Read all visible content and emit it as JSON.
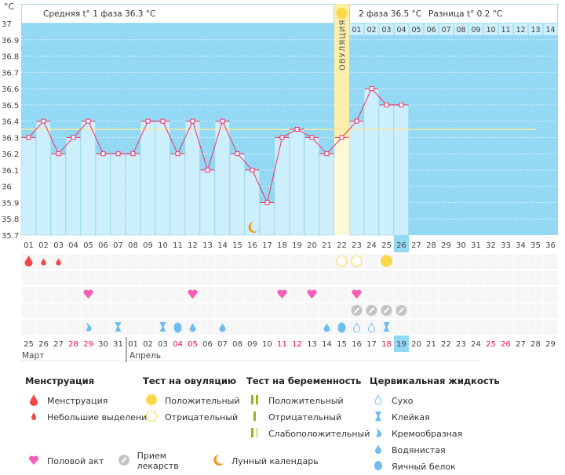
{
  "chart_data": {
    "type": "bar+line",
    "unit_label": "°C",
    "ylim": [
      35.7,
      37.0
    ],
    "y_ticks": [
      "37",
      "36.9",
      "36.8",
      "36.7",
      "36.6",
      "36.5",
      "36.4",
      "36.3",
      "36.2",
      "36.1",
      "36",
      "35.9",
      "35.8",
      "35.7"
    ],
    "cycle_days": [
      "01",
      "02",
      "03",
      "04",
      "05",
      "06",
      "07",
      "08",
      "09",
      "10",
      "11",
      "12",
      "13",
      "14",
      "15",
      "16",
      "17",
      "18",
      "19",
      "20",
      "21",
      "22",
      "23",
      "24",
      "25",
      "26",
      "27",
      "28",
      "29",
      "30",
      "31",
      "32",
      "33",
      "34",
      "35",
      "36"
    ],
    "temperatures": [
      36.3,
      36.4,
      36.2,
      36.3,
      36.4,
      36.2,
      36.2,
      36.2,
      36.4,
      36.4,
      36.2,
      36.4,
      36.1,
      36.4,
      36.2,
      36.1,
      35.9,
      36.3,
      36.35,
      36.3,
      36.2,
      36.3,
      36.4,
      36.6,
      36.5,
      36.5
    ],
    "coverline": 36.35,
    "ovulation_day": 22,
    "current_day": 26,
    "ovulation_label": "ОВУЛЯЦИЯ",
    "phase1_text": "Средняя t° 1 фаза 36.3 °C",
    "phase2_text": "2 фаза 36.5 °C",
    "difference_text": "Разница t° 0.2 °C",
    "phase2_days": [
      "01",
      "02",
      "03",
      "04",
      "05",
      "06",
      "07",
      "08",
      "09",
      "10",
      "11",
      "12",
      "13",
      "14"
    ],
    "calendar_dates": [
      "25",
      "26",
      "27",
      "28",
      "29",
      "30",
      "31",
      "01",
      "02",
      "03",
      "04",
      "05",
      "06",
      "07",
      "08",
      "09",
      "10",
      "11",
      "12",
      "13",
      "14",
      "15",
      "16",
      "17",
      "18",
      "19",
      "20",
      "21",
      "22",
      "23",
      "24",
      "25",
      "26",
      "27",
      "28",
      "29"
    ],
    "weekend_indices": [
      3,
      4,
      10,
      11,
      17,
      18,
      24,
      31,
      32
    ],
    "months": [
      "Март",
      "Апрель"
    ],
    "moon_day": 16,
    "markers": {
      "menstruation": {
        "1": "heavy",
        "2": "light",
        "3": "light"
      },
      "ovulation_test": {
        "22": "negative",
        "23": "negative",
        "25": "positive"
      },
      "intercourse": [
        5,
        12,
        18,
        20,
        23
      ],
      "medication": [
        23,
        24,
        25,
        26
      ],
      "cervical_fluid": {
        "5": "creamy",
        "7": "sticky",
        "10": "sticky",
        "11": "egg-white",
        "12": "watery",
        "14": "watery",
        "21": "watery",
        "22": "egg-white",
        "23": "dry",
        "24": "dry",
        "25": "sticky"
      }
    },
    "colors": {
      "background": "#93d9f3",
      "bar": "#cdeefb",
      "ovulation": "#fdeeaa",
      "line": "#f0306a",
      "coverline": "#fde9a0",
      "weekend": "#e8104a",
      "menstruation": "#f24646",
      "ov_test": "#fbd84a",
      "heart": "#f760b6",
      "pill": "#c4c4c4",
      "fluid": "#6fbdf0",
      "moon": "#f39a1c"
    }
  },
  "legend": {
    "menstruation": {
      "title": "Менструация",
      "items": [
        "Менструация",
        "Небольшие выделения"
      ]
    },
    "ovulation_test": {
      "title": "Тест на овуляцию",
      "items": [
        "Положительный",
        "Отрицательный"
      ]
    },
    "pregnancy_test": {
      "title": "Тест на беременность",
      "items": [
        "Положительный",
        "Отрицательный",
        "Слабоположительный"
      ]
    },
    "cervical_fluid": {
      "title": "Цервикальная жидкость",
      "items": [
        "Сухо",
        "Клейкая",
        "Кремообразная",
        "Водянистая",
        "Яичный белок"
      ]
    },
    "other": [
      "Половой акт",
      "Прием лекарств",
      "Лунный календарь"
    ]
  }
}
